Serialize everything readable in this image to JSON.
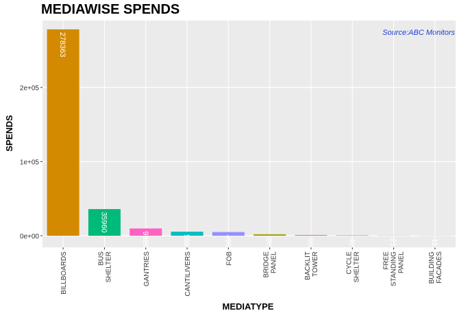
{
  "chart_data": {
    "type": "bar",
    "title": "MEDIAWISE SPENDS",
    "x_label": "MEDIATYPE",
    "y_label": "SPENDS",
    "annotation": "Source:ABC Monitors",
    "categories": [
      "BILLBOARDS",
      "BUS\nSHELTER",
      "GANTRIES",
      "CANTILIVERS",
      "FOB",
      "BRIDGE\nPANEL",
      "BACKLIT\nTOWER",
      "CYCLE\nSHELTER",
      "FREE\nSTANDING\nPANEL",
      "BUILDING\nFACADES"
    ],
    "values": [
      278363,
      35960,
      9820,
      5524,
      4986,
      2010,
      1020,
      420,
      210,
      110
    ],
    "colors": [
      "#d38a00",
      "#00ba7a",
      "#ff61c3",
      "#00bfc4",
      "#9590ff",
      "#a3a500",
      "#f8766d",
      "#00b0f6",
      "#e76bf3",
      "#39b600"
    ],
    "ylim": [
      -15700,
      290300
    ],
    "yticks": [
      {
        "value": 0,
        "label": "0e+00"
      },
      {
        "value": 100000,
        "label": "1e+05"
      },
      {
        "value": 200000,
        "label": "2e+05"
      }
    ],
    "grid": true
  }
}
